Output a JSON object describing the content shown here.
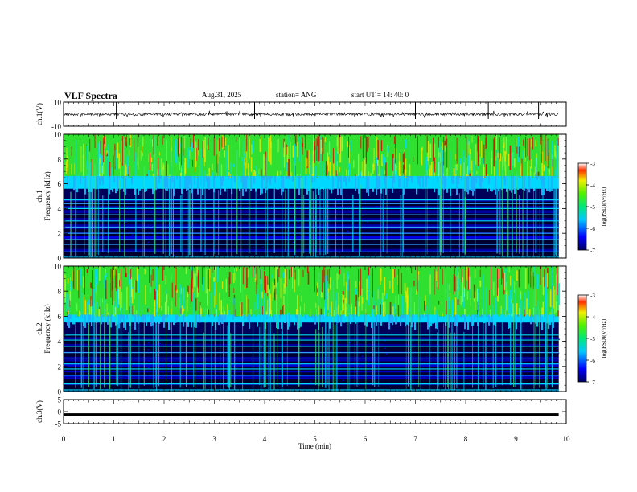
{
  "header": {
    "title": "VLF Spectra",
    "date": "Aug.31, 2025",
    "station": "station= ANG",
    "start": "start  UT =   14: 40: 0"
  },
  "colors": {
    "spec_dark": "#000030",
    "spec_navy": "#00005a",
    "spec_blue": "#0000ff",
    "spec_cyan": "#00d8ff",
    "spec_green": "#30e030",
    "spec_yellow": "#e8e800",
    "spec_red": "#e00000"
  },
  "chart_data": [
    {
      "type": "line",
      "name": "ch1-waveform",
      "ylabel": "ch.1(V)",
      "ylim": [
        -10,
        10
      ],
      "y_tick_labels": [
        "10",
        "-10"
      ],
      "baseline": 0,
      "noise_amplitude": 1.2,
      "spikes_x_min": [
        1.05,
        3.8,
        7.0,
        8.45,
        9.45
      ]
    },
    {
      "type": "heatmap",
      "name": "ch1-spectrogram",
      "ylabel_line1": "ch.1",
      "ylabel_line2": "Frequency  (kHz)",
      "ylim": [
        0,
        10
      ],
      "y_tick_labels": [
        "10",
        "8",
        "6",
        "4",
        "2",
        "0"
      ],
      "hot_band_start_khz": 6.5,
      "cutoff_khz": 4.7,
      "line_frequencies_khz": [
        0.5,
        1.1,
        1.5,
        2.0,
        2.5,
        3.0,
        3.5,
        4.0,
        4.4,
        4.7
      ],
      "colorbar": {
        "label": "log(PSD)(V²/Hz)",
        "range": [
          -7,
          -3
        ],
        "tick_labels": [
          "-3",
          "-4",
          "-5",
          "-6",
          "-7"
        ]
      }
    },
    {
      "type": "heatmap",
      "name": "ch2-spectrogram",
      "ylabel_line1": "ch.2",
      "ylabel_line2": "Frequency  (kHz)",
      "ylim": [
        0,
        10
      ],
      "y_tick_labels": [
        "10",
        "8",
        "6",
        "4",
        "2",
        "0"
      ],
      "hot_band_start_khz": 6.0,
      "cutoff_khz": 4.6,
      "line_frequencies_khz": [
        0.6,
        1.3,
        1.8,
        2.2,
        2.6,
        3.1,
        3.6,
        4.1,
        4.5
      ],
      "colorbar": {
        "label": "log(PSD)(V²/Hz)",
        "range": [
          -7,
          -3
        ],
        "tick_labels": [
          "-3",
          "-4",
          "-5",
          "-6",
          "-7"
        ]
      }
    },
    {
      "type": "line",
      "name": "ch3-waveform",
      "ylabel": "ch.3(V)",
      "ylim": [
        -5,
        5
      ],
      "y_tick_labels": [
        "5",
        "0",
        "-5"
      ],
      "baseline": -1.2,
      "noise_amplitude": 0.25
    }
  ],
  "time_axis": {
    "xlabel": "Time  (min)",
    "xlim": [
      0,
      10
    ],
    "data_end_min": 9.85,
    "tick_labels": [
      "0",
      "1",
      "2",
      "3",
      "4",
      "5",
      "6",
      "7",
      "8",
      "9",
      "10"
    ]
  }
}
